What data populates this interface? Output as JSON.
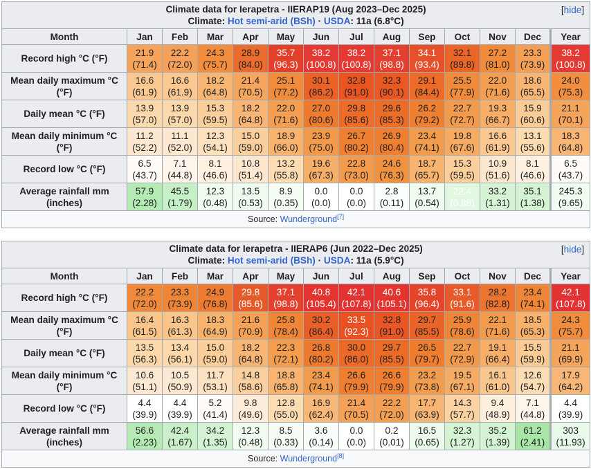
{
  "months": [
    "Jan",
    "Feb",
    "Mar",
    "Apr",
    "May",
    "Jun",
    "Jul",
    "Aug",
    "Sep",
    "Oct",
    "Nov",
    "Dec",
    "Year"
  ],
  "tables": [
    {
      "title": "Climate data for Ierapetra - IIERAP19 (Aug 2023–Dec 2025)",
      "climate_label": "Climate:",
      "climate_link": "Hot semi-arid (BSh)",
      "separator": "·",
      "usda_link": "USDA",
      "usda_value": ": 11a (6.8°C)",
      "hide_label": "hide",
      "month_header": "Month",
      "source_label": "Source:",
      "source_link": "Wunderground",
      "source_ref": "[7]",
      "rows": [
        {
          "label": "Record high °C (°F)",
          "values": [
            "21.9",
            "22.2",
            "24.3",
            "28.9",
            "35.7",
            "38.2",
            "38.2",
            "37.1",
            "34.1",
            "32.1",
            "27.2",
            "23.3",
            "38.2"
          ],
          "subs": [
            "(71.4)",
            "(72.0)",
            "(75.7)",
            "(84.0)",
            "(96.3)",
            "(100.8)",
            "(100.8)",
            "(98.8)",
            "(93.4)",
            "(89.8)",
            "(81.0)",
            "(73.9)",
            "(100.8)"
          ],
          "colors": [
            "#f6a35c",
            "#f5a15a",
            "#f18d3d",
            "#eb6c2d",
            "#e3402c",
            "#e43a33",
            "#e43a33",
            "#e4402f",
            "#e6502a",
            "#ea6526",
            "#ef8b3a",
            "#f49f56",
            "#e43a33"
          ]
        },
        {
          "label": "Mean daily maximum °C (°F)",
          "values": [
            "16.6",
            "16.6",
            "18.2",
            "21.4",
            "25.1",
            "30.1",
            "32.8",
            "32.3",
            "29.1",
            "25.5",
            "22.0",
            "18.6",
            "24.0"
          ],
          "subs": [
            "(61.9)",
            "(61.9)",
            "(64.8)",
            "(70.5)",
            "(77.2)",
            "(86.2)",
            "(91.0)",
            "(90.1)",
            "(84.4)",
            "(77.9)",
            "(71.6)",
            "(65.5)",
            "(75.3)"
          ],
          "colors": [
            "#fac890",
            "#fac890",
            "#f8b574",
            "#f5a55d",
            "#f08c3c",
            "#eb6226",
            "#e95522",
            "#ea5824",
            "#ec6b29",
            "#f08b3b",
            "#f39e50",
            "#f8b674",
            "#f18e40"
          ]
        },
        {
          "label": "Daily mean °C (°F)",
          "values": [
            "13.9",
            "13.9",
            "15.3",
            "18.2",
            "22.0",
            "27.0",
            "29.8",
            "29.6",
            "26.2",
            "22.7",
            "19.3",
            "15.9",
            "21.1"
          ],
          "subs": [
            "(57.0)",
            "(57.0)",
            "(59.5)",
            "(64.8)",
            "(71.6)",
            "(80.6)",
            "(85.6)",
            "(85.3)",
            "(79.2)",
            "(72.7)",
            "(66.7)",
            "(60.6)",
            "(70.1)"
          ],
          "colors": [
            "#fcd9ad",
            "#fcd9ad",
            "#fbcf9b",
            "#f8b574",
            "#f39e50",
            "#ee7a2e",
            "#ec6c28",
            "#ec6d28",
            "#ef7f31",
            "#f29b4c",
            "#f7ae68",
            "#facc97",
            "#f5a45c"
          ]
        },
        {
          "label": "Mean daily minimum °C (°F)",
          "values": [
            "11.2",
            "11.1",
            "12.3",
            "15.0",
            "18.9",
            "23.9",
            "26.7",
            "26.9",
            "23.4",
            "19.8",
            "16.6",
            "13.1",
            "18.3"
          ],
          "subs": [
            "(52.2)",
            "(52.0)",
            "(54.1)",
            "(59.0)",
            "(66.0)",
            "(75.0)",
            "(80.2)",
            "(80.4)",
            "(74.1)",
            "(67.6)",
            "(61.9)",
            "(55.6)",
            " (64.8)"
          ],
          "colors": [
            "#fde8cf",
            "#fde8cf",
            "#fde0bd",
            "#fbcf9b",
            "#f8b36f",
            "#f29a49",
            "#ef7f31",
            "#ef7f31",
            "#f29b4c",
            "#f6aa62",
            "#fac890",
            "#fcdbb0",
            "#f8b574"
          ]
        },
        {
          "label": "Record low °C (°F)",
          "values": [
            "6.5",
            "7.1",
            "8.1",
            "10.8",
            "13.2",
            "19.6",
            "22.8",
            "24.6",
            "18.7",
            "15.3",
            "10.9",
            "8.1",
            "6.5"
          ],
          "subs": [
            "(43.7)",
            "(44.8)",
            "(46.6)",
            "(51.4)",
            "(55.8)",
            "(67.3)",
            "(73.0)",
            "(76.3)",
            "(65.7)",
            "(59.5)",
            "(51.6)",
            "(46.6)",
            "(43.7)"
          ],
          "colors": [
            "#fffbf6",
            "#fff4ea",
            "#fff0e0",
            "#fde8cf",
            "#fcdcb3",
            "#f7ae68",
            "#f29b4c",
            "#f1923f",
            "#f8b36f",
            "#fbcf9b",
            "#fde8cf",
            "#fff0e0",
            "#fffbf6"
          ]
        },
        {
          "label": "Average rainfall mm (inches)",
          "values": [
            "57.9",
            "45.5",
            "12.3",
            "13.5",
            "8.9",
            "0.0",
            "0.0",
            "2.8",
            "13.7",
            "22.4",
            "33.2",
            "35.1",
            "245.3"
          ],
          "subs": [
            "(2.28)",
            "(1.79)",
            "(0.48)",
            "(0.53)",
            "(0.35)",
            "(0.0)",
            "(0.0)",
            "(0.11)",
            "(0.54)",
            "(0.88)",
            "(1.31)",
            "(1.38)",
            "(9.65)"
          ],
          "colors": [
            "#b4eab4",
            "#c6f0c6",
            "#f0fcf0",
            "#eefbee",
            "#f5fdf5",
            "#ffffff",
            "#ffffff",
            "#fbfffb",
            "#eefbee",
            "#e2f7e2",
            "#d6f3d6",
            "#d3f3d3",
            "#effcef"
          ]
        }
      ]
    },
    {
      "title": "Climate data for Ierapetra - IIERAP6 (Jun 2022–Dec 2025)",
      "climate_label": "Climate:",
      "climate_link": "Hot semi-arid (BSh)",
      "separator": "·",
      "usda_link": "USDA",
      "usda_value": ": 11a (5.9°C)",
      "hide_label": "hide",
      "month_header": "Month",
      "source_label": "Source:",
      "source_link": "Wunderground",
      "source_ref": "[8]",
      "rows": [
        {
          "label": "Record high °C (°F)",
          "values": [
            "22.2",
            "23.3",
            "24.9",
            "29.8",
            "37.1",
            "40.8",
            "42.1",
            "40.6",
            "35.8",
            "33.1",
            "28.2",
            "23.4",
            "42.1"
          ],
          "subs": [
            "(72.0)",
            "(73.9)",
            "(76.8)",
            "(85.6)",
            "(98.8)",
            "(105.4)",
            "(107.8)",
            "(105.1)",
            "(96.4)",
            "(91.6)",
            "(82.8)",
            "(74.1)",
            "(107.8)"
          ],
          "colors": [
            "#f08a3a",
            "#ef8637",
            "#ed7c32",
            "#e65a2a",
            "#e3402e",
            "#e33430",
            "#e33232",
            "#e33430",
            "#e4452b",
            "#e85a29",
            "#ec7431",
            "#ef8637",
            "#e33232"
          ]
        },
        {
          "label": "Mean daily maximum °C (°F)",
          "values": [
            "16.4",
            "16.3",
            "18.3",
            "21.6",
            "25.8",
            "30.2",
            "33.5",
            "32.8",
            "29.7",
            "25.9",
            "22.1",
            "18.5",
            "24.3"
          ],
          "subs": [
            "(61.5)",
            "(61.3)",
            "(64.9)",
            "(70.9)",
            "(78.4)",
            "(86.4)",
            "(92.3)",
            "(91.0)",
            "(85.5)",
            "(78.6)",
            "(71.6)",
            "(65.3)",
            "(75.7)"
          ],
          "colors": [
            "#f9c58a",
            "#f9c58a",
            "#f7b26c",
            "#f4a055",
            "#ef8537",
            "#ea5f27",
            "#e85122",
            "#e95523",
            "#eb6427",
            "#ef8537",
            "#f39b4d",
            "#f7b16b",
            "#f08c3d"
          ]
        },
        {
          "label": "Daily mean °C (°F)",
          "values": [
            "13.5",
            "13.4",
            "15.0",
            "18.2",
            "22.3",
            "26.8",
            "30.0",
            "29.7",
            "26.5",
            "22.7",
            "19.1",
            "15.5",
            "21.1"
          ],
          "subs": [
            "(56.3)",
            "(56.1)",
            "(59.0)",
            "(64.8)",
            "(72.1)",
            "(80.2)",
            "(86.0)",
            "(85.5)",
            "(79.7)",
            "(72.9)",
            "(66.4)",
            "(59.9)",
            "(69.9)"
          ],
          "colors": [
            "#fcd8aa",
            "#fcd8aa",
            "#fbcd98",
            "#f8b574",
            "#f39d4e",
            "#ee7a2e",
            "#ec6a27",
            "#ec6b27",
            "#ef7d30",
            "#f29a4b",
            "#f7ae68",
            "#facb94",
            "#f5a45c"
          ]
        },
        {
          "label": "Mean daily minimum °C (°F)",
          "values": [
            "10.6",
            "10.5",
            "11.7",
            "14.8",
            "18.8",
            "23.4",
            "26.6",
            "26.6",
            "23.2",
            "19.5",
            "16.1",
            "12.6",
            "17.9"
          ],
          "subs": [
            "(51.1)",
            "(50.9)",
            "(53.1)",
            "(58.6)",
            "(65.8)",
            "(74.1)",
            "(79.9)",
            "(79.9)",
            "(73.8)",
            "(67.1)",
            "(61.0)",
            "(54.7)",
            "(64.2)"
          ],
          "colors": [
            "#fde9d2",
            "#fde9d2",
            "#fde2c2",
            "#fbd09e",
            "#f8b470",
            "#f29b4c",
            "#ef7e31",
            "#ef7e31",
            "#f29c4d",
            "#f6ac65",
            "#f9c68d",
            "#fcdcb3",
            "#f8b777"
          ]
        },
        {
          "label": "Record low °C (°F)",
          "values": [
            "4.4",
            "4.4",
            "5.2",
            "9.8",
            "12.8",
            "16.9",
            "21.4",
            "22.2",
            "17.7",
            "14.3",
            "9.4",
            "7.1",
            "4.4"
          ],
          "subs": [
            "(39.9)",
            "(39.9)",
            "(41.4)",
            "(49.6)",
            "(55.0)",
            "(62.4)",
            "(70.5)",
            "(72.0)",
            "(63.9)",
            "(57.7)",
            "(48.9)",
            "(44.8)",
            "(39.9)"
          ],
          "colors": [
            "#ffffff",
            "#ffffff",
            "#fffcf8",
            "#feecd8",
            "#fcdcb3",
            "#f8b877",
            "#f4a157",
            "#f39e51",
            "#f8b473",
            "#fbd3a3",
            "#feeedc",
            "#fff4ea",
            "#ffffff"
          ]
        },
        {
          "label": "Average rainfall mm (inches)",
          "values": [
            "56.6",
            "42.4",
            "34.2",
            "12.3",
            "8.5",
            "3.6",
            "0.0",
            "0.2",
            "16.5",
            "32.3",
            "35.2",
            "61.2",
            "303"
          ],
          "subs": [
            "(2.23)",
            "(1.67)",
            "(1.35)",
            "(0.48)",
            "(0.33)",
            "(0.14)",
            "(0.0)",
            "(0.01)",
            "(0.65)",
            "(1.27)",
            "(1.39)",
            "(2.41)",
            "(11.93)"
          ],
          "colors": [
            "#b5eab5",
            "#c9f0c9",
            "#d4f3d4",
            "#f0fcf0",
            "#f5fdf5",
            "#fafefa",
            "#ffffff",
            "#ffffff",
            "#ebfaeb",
            "#d6f3d6",
            "#d3f3d3",
            "#a8e6a8",
            "#eafaea"
          ]
        }
      ]
    }
  ]
}
